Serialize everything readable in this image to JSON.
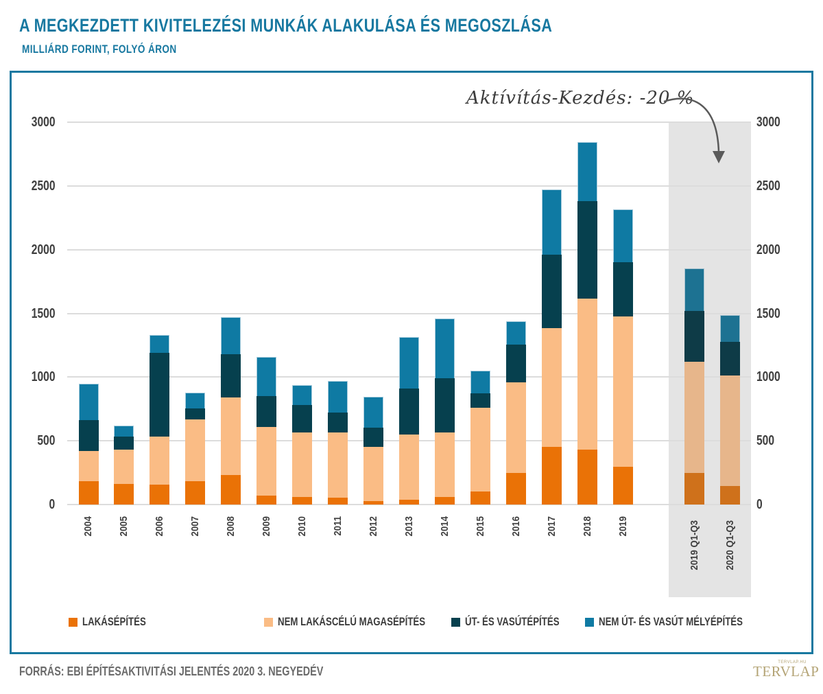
{
  "header": {
    "title": "A MEGKEZDETT KIVITELEZÉSI MUNKÁK ALAKULÁSA ÉS MEGOSZLÁSA",
    "subtitle": "MILLIÁRD FORINT, FOLYÓ ÁRON"
  },
  "annotation": {
    "text": "Aktívítás-Kezdés: -20 %"
  },
  "chart_data": {
    "type": "bar",
    "stacked": true,
    "title": "A megkezdett kivitelezési munkák alakulása és megoszlása",
    "unit": "milliárd forint, folyó áron",
    "categories": [
      "2004",
      "2005",
      "2006",
      "2007",
      "2008",
      "2009",
      "2010",
      "2011",
      "2012",
      "2013",
      "2014",
      "2015",
      "2016",
      "2017",
      "2018",
      "2019",
      "2019 Q1-Q3",
      "2020 Q1-Q3"
    ],
    "series": [
      {
        "name": "LAKÁSÉPÍTÉS",
        "color": "#ea7206",
        "values": [
          185,
          160,
          155,
          185,
          230,
          70,
          60,
          55,
          25,
          35,
          60,
          100,
          245,
          450,
          430,
          295,
          250,
          145
        ]
      },
      {
        "name": "NEM LAKÁSCÉLÚ MAGASÉPÍTÉS",
        "color": "#fabc85",
        "values": [
          235,
          270,
          380,
          485,
          610,
          540,
          505,
          510,
          430,
          515,
          505,
          660,
          715,
          935,
          1185,
          1180,
          870,
          865
        ]
      },
      {
        "name": "ÚT- ÉS VASÚTÉPÍTÉS",
        "color": "#06404e",
        "values": [
          240,
          105,
          655,
          85,
          340,
          240,
          215,
          155,
          150,
          360,
          425,
          110,
          295,
          575,
          765,
          425,
          400,
          265
        ]
      },
      {
        "name": "NEM ÚT- ÉS VASÚT MÉLYÉPÍTÉS",
        "color": "#0f7aa3",
        "values": [
          290,
          85,
          140,
          125,
          290,
          310,
          155,
          250,
          240,
          405,
          470,
          180,
          185,
          510,
          465,
          415,
          335,
          210
        ]
      }
    ],
    "totals": [
      950,
      620,
      1330,
      880,
      1470,
      1160,
      935,
      970,
      845,
      1315,
      1460,
      1050,
      1440,
      2470,
      2845,
      2315,
      1855,
      1485
    ],
    "ylim": [
      0,
      3000
    ],
    "yticks": [
      0,
      500,
      1000,
      1500,
      2000,
      2500,
      3000
    ],
    "grid": true,
    "legend_position": "bottom",
    "highlight_region": {
      "categories": [
        "2019 Q1-Q3",
        "2020 Q1-Q3"
      ],
      "color": "#e4e4e4",
      "annotation": "Aktívítás-Kezdés: -20 %"
    }
  },
  "footer": {
    "source": "FORRÁS: EBI ÉPÍTÉSAKTIVITÁSI JELENTÉS 2020 3. NEGYEDÉV",
    "logo": {
      "text": "TERVLAP",
      "small_text": "TERVLAP.HU"
    }
  }
}
